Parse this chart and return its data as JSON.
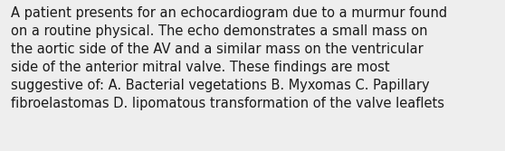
{
  "text": "A patient presents for an echocardiogram due to a murmur found\non a routine physical. The echo demonstrates a small mass on\nthe aortic side of the AV and a similar mass on the ventricular\nside of the anterior mitral valve. These findings are most\nsuggestive of: A. Bacterial vegetations B. Myxomas C. Papillary\nfibroelastomas D. lipomatous transformation of the valve leaflets",
  "background_color": "#eeeeee",
  "text_color": "#1a1a1a",
  "font_size": 10.5,
  "fig_width": 5.58,
  "fig_height": 1.67,
  "dpi": 100
}
